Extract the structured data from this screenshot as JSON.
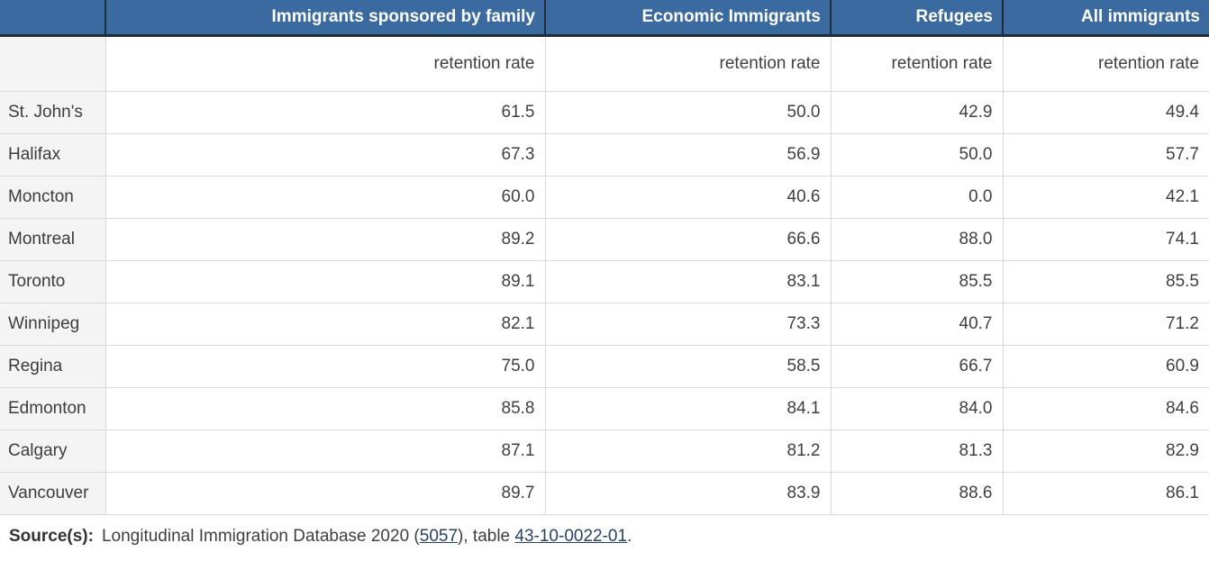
{
  "table": {
    "columns": [
      {
        "label": "",
        "subheader": ""
      },
      {
        "label": "Immigrants sponsored by family",
        "subheader": "retention rate"
      },
      {
        "label": "Economic Immigrants",
        "subheader": "retention rate"
      },
      {
        "label": "Refugees",
        "subheader": "retention rate"
      },
      {
        "label": "All immigrants",
        "subheader": "retention rate"
      }
    ],
    "rows": [
      {
        "city": "St. John's",
        "values": [
          "61.5",
          "50.0",
          "42.9",
          "49.4"
        ]
      },
      {
        "city": "Halifax",
        "values": [
          "67.3",
          "56.9",
          "50.0",
          "57.7"
        ]
      },
      {
        "city": "Moncton",
        "values": [
          "60.0",
          "40.6",
          "0.0",
          "42.1"
        ]
      },
      {
        "city": "Montreal",
        "values": [
          "89.2",
          "66.6",
          "88.0",
          "74.1"
        ]
      },
      {
        "city": "Toronto",
        "values": [
          "89.1",
          "83.1",
          "85.5",
          "85.5"
        ]
      },
      {
        "city": "Winnipeg",
        "values": [
          "82.1",
          "73.3",
          "40.7",
          "71.2"
        ]
      },
      {
        "city": "Regina",
        "values": [
          "75.0",
          "58.5",
          "66.7",
          "60.9"
        ]
      },
      {
        "city": "Edmonton",
        "values": [
          "85.8",
          "84.1",
          "84.0",
          "84.6"
        ]
      },
      {
        "city": "Calgary",
        "values": [
          "87.1",
          "81.2",
          "81.3",
          "82.9"
        ]
      },
      {
        "city": "Vancouver",
        "values": [
          "89.7",
          "83.9",
          "88.6",
          "86.1"
        ]
      }
    ]
  },
  "source": {
    "label": "Source(s):",
    "text_before": "Longitudinal Immigration Database 2020 (",
    "link1": "5057",
    "text_middle": "), table ",
    "link2": "43-10-0022-01",
    "text_after": "."
  },
  "colors": {
    "header_bg": "#3b6aa0",
    "header_text": "#ffffff",
    "header_border": "#1f2d3d",
    "label_bg": "#f4f4f4",
    "grid_line": "#d9d9d9",
    "body_text": "#404040",
    "link": "#284162"
  },
  "chart_data": {
    "type": "table",
    "title": "",
    "column_groups": [
      "Immigrants sponsored by family",
      "Economic Immigrants",
      "Refugees",
      "All immigrants"
    ],
    "measure": "retention rate",
    "row_label_header": "",
    "rows": [
      {
        "city": "St. John's",
        "immigrants_sponsored_by_family": 61.5,
        "economic_immigrants": 50.0,
        "refugees": 42.9,
        "all_immigrants": 49.4
      },
      {
        "city": "Halifax",
        "immigrants_sponsored_by_family": 67.3,
        "economic_immigrants": 56.9,
        "refugees": 50.0,
        "all_immigrants": 57.7
      },
      {
        "city": "Moncton",
        "immigrants_sponsored_by_family": 60.0,
        "economic_immigrants": 40.6,
        "refugees": 0.0,
        "all_immigrants": 42.1
      },
      {
        "city": "Montreal",
        "immigrants_sponsored_by_family": 89.2,
        "economic_immigrants": 66.6,
        "refugees": 88.0,
        "all_immigrants": 74.1
      },
      {
        "city": "Toronto",
        "immigrants_sponsored_by_family": 89.1,
        "economic_immigrants": 83.1,
        "refugees": 85.5,
        "all_immigrants": 85.5
      },
      {
        "city": "Winnipeg",
        "immigrants_sponsored_by_family": 82.1,
        "economic_immigrants": 73.3,
        "refugees": 40.7,
        "all_immigrants": 71.2
      },
      {
        "city": "Regina",
        "immigrants_sponsored_by_family": 75.0,
        "economic_immigrants": 58.5,
        "refugees": 66.7,
        "all_immigrants": 60.9
      },
      {
        "city": "Edmonton",
        "immigrants_sponsored_by_family": 85.8,
        "economic_immigrants": 84.1,
        "refugees": 84.0,
        "all_immigrants": 84.6
      },
      {
        "city": "Calgary",
        "immigrants_sponsored_by_family": 87.1,
        "economic_immigrants": 81.2,
        "refugees": 81.3,
        "all_immigrants": 82.9
      },
      {
        "city": "Vancouver",
        "immigrants_sponsored_by_family": 89.7,
        "economic_immigrants": 83.9,
        "refugees": 88.6,
        "all_immigrants": 86.1
      }
    ],
    "source_note": "Source(s): Longitudinal Immigration Database 2020 (5057), table 43-10-0022-01."
  }
}
